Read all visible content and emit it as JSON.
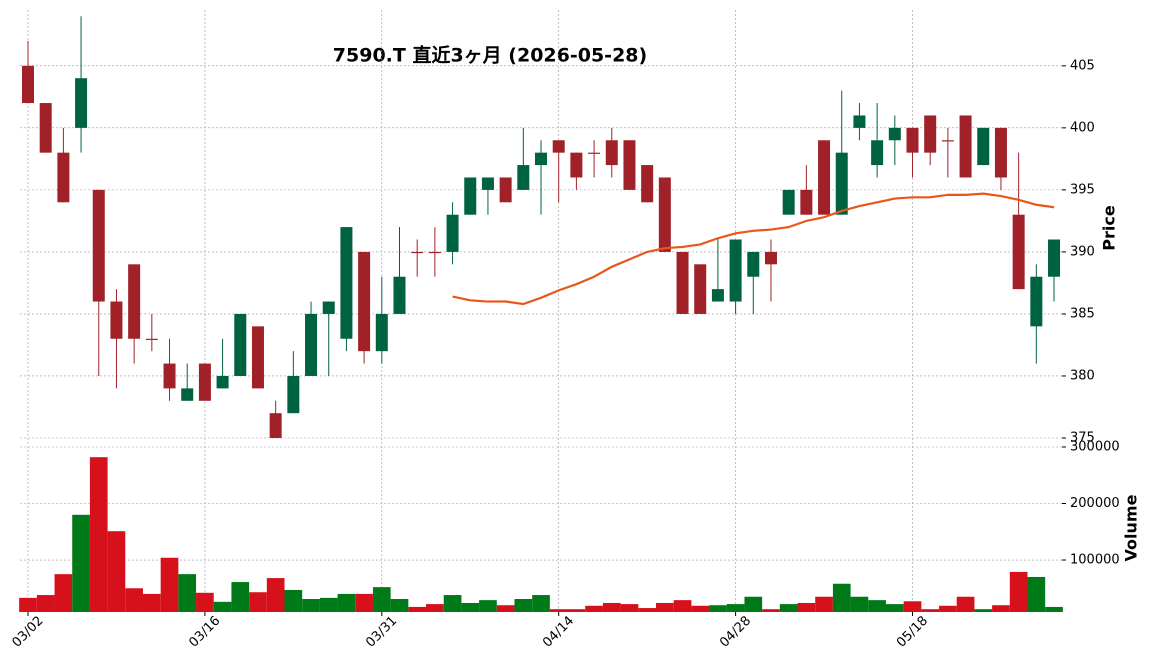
{
  "chart_data": {
    "type": "candlestick",
    "title": "7590.T  直近3ヶ月  (2026-05-28)",
    "ylabel": "Price",
    "categories": [
      "03/02",
      null,
      null,
      null,
      null,
      null,
      null,
      null,
      null,
      null,
      "03/16",
      null,
      null,
      null,
      null,
      null,
      null,
      null,
      null,
      null,
      "03/31",
      null,
      null,
      null,
      null,
      null,
      null,
      null,
      null,
      null,
      "04/14",
      null,
      null,
      null,
      null,
      null,
      null,
      null,
      null,
      null,
      "04/28",
      null,
      null,
      null,
      null,
      null,
      null,
      null,
      null,
      null,
      "05/18",
      null,
      null,
      null,
      null,
      null,
      null,
      null,
      null
    ],
    "open": [
      405,
      402,
      398,
      400,
      395,
      386,
      389,
      383,
      381,
      378,
      381,
      379,
      380,
      384,
      377,
      377,
      380,
      385,
      383,
      390,
      382,
      385,
      390,
      390,
      390,
      393,
      395,
      396,
      395,
      397,
      399,
      398,
      398,
      399,
      399,
      397,
      396,
      390,
      389,
      386,
      386,
      388,
      390,
      393,
      395,
      399,
      393,
      400,
      397,
      399,
      400,
      401,
      399,
      401,
      397,
      400,
      393,
      384,
      388
    ],
    "high": [
      407,
      402,
      400,
      409,
      395,
      387,
      389,
      385,
      383,
      381,
      381,
      383,
      385,
      384,
      378,
      382,
      386,
      386,
      392,
      390,
      388,
      392,
      391,
      392,
      394,
      396,
      396,
      396,
      400,
      399,
      399,
      398,
      399,
      400,
      399,
      397,
      396,
      390,
      389,
      391,
      391,
      390,
      391,
      395,
      397,
      399,
      403,
      402,
      402,
      401,
      400,
      401,
      400,
      401,
      400,
      400,
      398,
      389,
      391
    ],
    "low": [
      402,
      398,
      394,
      398,
      380,
      379,
      381,
      382,
      378,
      378,
      378,
      379,
      380,
      379,
      375,
      377,
      380,
      380,
      382,
      381,
      381,
      385,
      388,
      388,
      389,
      393,
      393,
      394,
      395,
      393,
      394,
      395,
      396,
      396,
      395,
      394,
      390,
      385,
      385,
      386,
      385,
      385,
      386,
      393,
      393,
      393,
      393,
      399,
      396,
      397,
      396,
      397,
      396,
      396,
      397,
      395,
      387,
      381,
      386
    ],
    "close": [
      402,
      398,
      394,
      404,
      386,
      383,
      383,
      383,
      379,
      379,
      378,
      380,
      385,
      379,
      375,
      380,
      385,
      386,
      392,
      382,
      385,
      388,
      390,
      390,
      393,
      396,
      396,
      394,
      397,
      398,
      398,
      396,
      398,
      397,
      395,
      394,
      390,
      385,
      385,
      387,
      391,
      390,
      389,
      395,
      393,
      393,
      398,
      401,
      399,
      400,
      398,
      398,
      399,
      396,
      400,
      396,
      387,
      388,
      391
    ],
    "ma": [
      null,
      null,
      null,
      null,
      null,
      null,
      null,
      null,
      null,
      null,
      null,
      null,
      null,
      null,
      null,
      null,
      null,
      null,
      null,
      null,
      null,
      null,
      null,
      null,
      386.4,
      386.1,
      386.0,
      386.0,
      385.8,
      386.3,
      386.9,
      387.4,
      388.0,
      388.8,
      389.4,
      390.0,
      390.3,
      390.4,
      390.6,
      391.1,
      391.5,
      391.7,
      391.8,
      392.0,
      392.5,
      392.8,
      393.3,
      393.7,
      394.0,
      394.3,
      394.4,
      394.4,
      394.6,
      394.6,
      394.7,
      394.5,
      394.2,
      393.8,
      393.6
    ],
    "ma_color": "#e8571a",
    "up_color": "#006340",
    "down_color": "#a02128",
    "ylim": [
      375,
      409.5
    ],
    "yticks": [
      375,
      380,
      385,
      390,
      395,
      400,
      405
    ],
    "grid": true,
    "volume": {
      "label": "Volume",
      "values": [
        33000,
        38000,
        75000,
        180000,
        282000,
        151000,
        50000,
        40000,
        104000,
        75000,
        42000,
        26000,
        61000,
        43000,
        68000,
        47000,
        31000,
        33000,
        40000,
        40000,
        52000,
        31000,
        17000,
        22000,
        38000,
        24000,
        29000,
        20000,
        31000,
        38000,
        13000,
        13000,
        19000,
        24000,
        22000,
        15000,
        24000,
        29000,
        19000,
        20000,
        22000,
        35000,
        13000,
        22000,
        24000,
        35000,
        58000,
        35000,
        29000,
        22000,
        27000,
        13000,
        19000,
        35000,
        13000,
        20000,
        79000,
        70000,
        17000
      ],
      "up_color": "#007a18",
      "down_color": "#d7111c",
      "ylim": [
        8000,
        300000
      ],
      "yticks": [
        100000,
        200000,
        300000
      ]
    }
  }
}
